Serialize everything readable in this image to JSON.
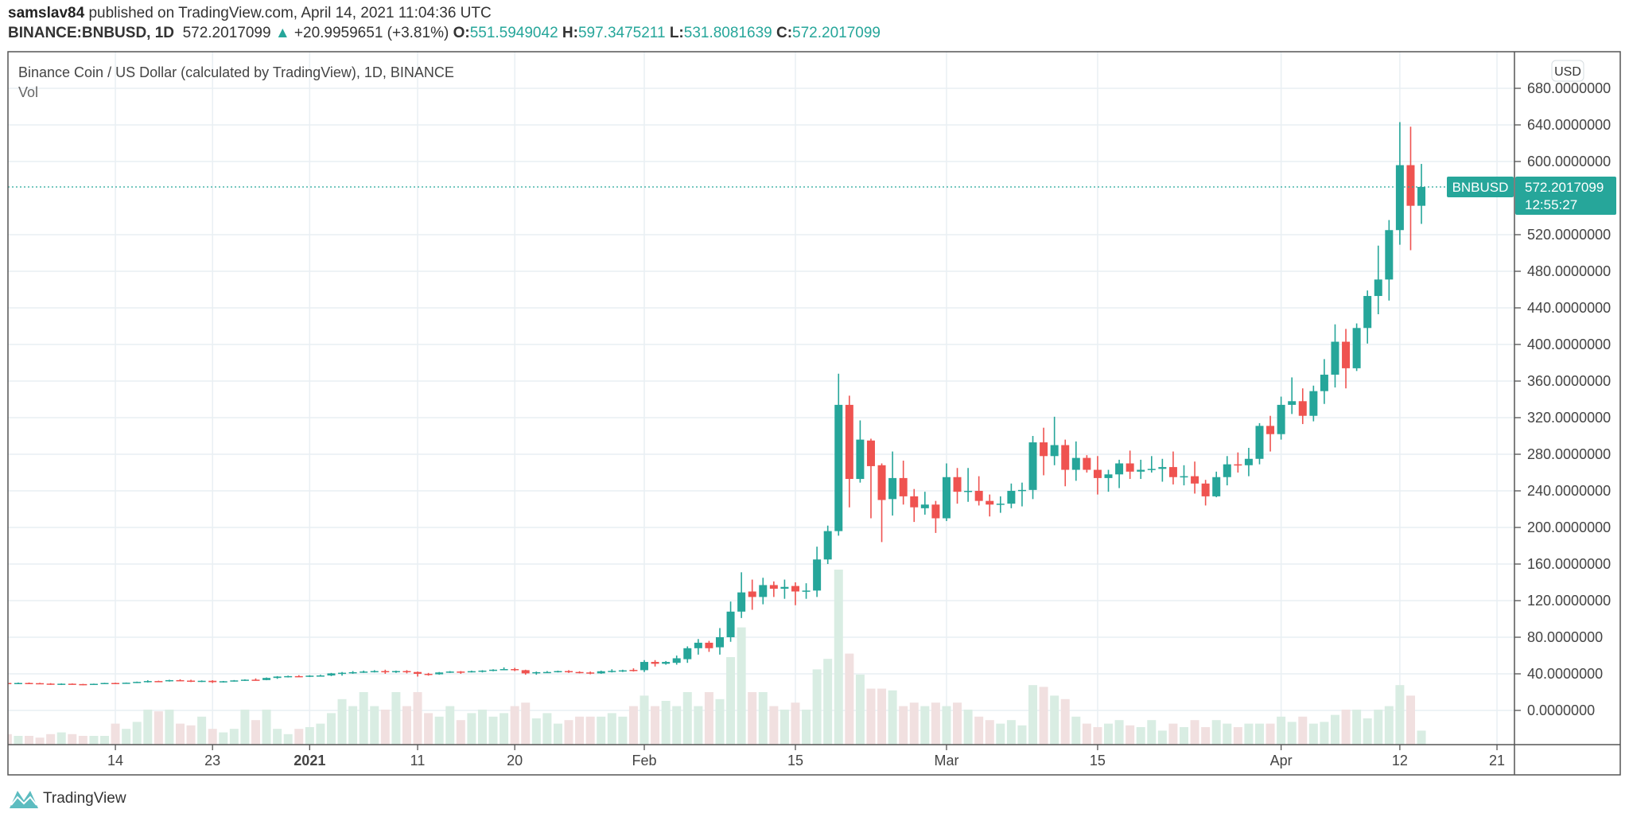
{
  "header": {
    "author": "samslav84",
    "published": "published on TradingView.com, April 14, 2021 11:04:36 UTC",
    "symbol": "BINANCE:BNBUSD, 1D",
    "last": "572.2017099",
    "change": "+20.9959651 (+3.81%)",
    "o_label": "O:",
    "o": "551.5949042",
    "h_label": "H:",
    "h": "597.3475211",
    "l_label": "L:",
    "l": "531.8081639",
    "c_label": "C:",
    "c": "572.2017099"
  },
  "legend": {
    "title": "Binance Coin / US Dollar (calculated by TradingView), 1D, BINANCE",
    "vol": "Vol"
  },
  "price_axis": {
    "currency": "USD",
    "symbol_tag": "BNBUSD",
    "last_price": "572.2017099",
    "countdown": "12:55:27"
  },
  "branding": {
    "logo_text": "TradingView"
  },
  "colors": {
    "up": "#26a69a",
    "down": "#ef5350",
    "vol_up": "#d9ede3",
    "vol_down": "#f1e0e0",
    "grid": "#e9eff3"
  },
  "chart_data": {
    "type": "candlestick",
    "ylim": [
      -60,
      700
    ],
    "grid": true,
    "y_ticks": [
      {
        "value": 680,
        "label": "680.0000000"
      },
      {
        "value": 640,
        "label": "640.0000000"
      },
      {
        "value": 600,
        "label": "600.0000000"
      },
      {
        "value": 520,
        "label": "520.0000000"
      },
      {
        "value": 480,
        "label": "480.0000000"
      },
      {
        "value": 440,
        "label": "440.0000000"
      },
      {
        "value": 400,
        "label": "400.0000000"
      },
      {
        "value": 360,
        "label": "360.0000000"
      },
      {
        "value": 320,
        "label": "320.0000000"
      },
      {
        "value": 280,
        "label": "280.0000000"
      },
      {
        "value": 240,
        "label": "240.0000000"
      },
      {
        "value": 200,
        "label": "200.0000000"
      },
      {
        "value": 160,
        "label": "160.0000000"
      },
      {
        "value": 120,
        "label": "120.0000000"
      },
      {
        "value": 80,
        "label": "80.0000000"
      },
      {
        "value": 40,
        "label": "40.0000000"
      },
      {
        "value": 0,
        "label": "0.0000000"
      }
    ],
    "x_ticks": [
      {
        "date": "2020-12-14",
        "label": "14"
      },
      {
        "date": "2020-12-23",
        "label": "23"
      },
      {
        "date": "2021-01-01",
        "label": "2021",
        "bold": true
      },
      {
        "date": "2021-01-11",
        "label": "11"
      },
      {
        "date": "2021-01-20",
        "label": "20"
      },
      {
        "date": "2021-02-01",
        "label": "Feb"
      },
      {
        "date": "2021-02-15",
        "label": "15"
      },
      {
        "date": "2021-03-01",
        "label": "Mar"
      },
      {
        "date": "2021-03-15",
        "label": "15"
      },
      {
        "date": "2021-04-01",
        "label": "Apr"
      },
      {
        "date": "2021-04-12",
        "label": "12"
      },
      {
        "date": "2021-04-21",
        "label": "21"
      }
    ],
    "last_price": 572.2017099,
    "columns": [
      "date",
      "open",
      "high",
      "low",
      "close",
      "volume_relative"
    ],
    "candles": [
      [
        "2020-12-04",
        30,
        31,
        28,
        29.5,
        6
      ],
      [
        "2020-12-05",
        29.5,
        30.5,
        29,
        30,
        5
      ],
      [
        "2020-12-06",
        30,
        30.5,
        29.5,
        29.8,
        5
      ],
      [
        "2020-12-07",
        29.8,
        30.2,
        29,
        29.3,
        4
      ],
      [
        "2020-12-08",
        29.3,
        29.8,
        28,
        28.5,
        6
      ],
      [
        "2020-12-09",
        28.5,
        29.5,
        27.8,
        29.2,
        7
      ],
      [
        "2020-12-10",
        29.2,
        29.5,
        28.5,
        28.8,
        6
      ],
      [
        "2020-12-11",
        28.8,
        29,
        27.5,
        28.2,
        5
      ],
      [
        "2020-12-12",
        28.2,
        29.3,
        28,
        29.1,
        5
      ],
      [
        "2020-12-13",
        29.1,
        30.2,
        28.9,
        30,
        5
      ],
      [
        "2020-12-14",
        30,
        30.3,
        29.3,
        29.8,
        12
      ],
      [
        "2020-12-15",
        29.8,
        30.5,
        29.4,
        30.3,
        9
      ],
      [
        "2020-12-16",
        30.3,
        31.5,
        29.9,
        31.2,
        13
      ],
      [
        "2020-12-17",
        31.2,
        33,
        30.5,
        32.1,
        20
      ],
      [
        "2020-12-18",
        32.1,
        32.5,
        31,
        31.8,
        19
      ],
      [
        "2020-12-19",
        31.8,
        33.5,
        31.5,
        33.1,
        20
      ],
      [
        "2020-12-20",
        33.1,
        34,
        32,
        32.6,
        12
      ],
      [
        "2020-12-21",
        32.6,
        33.5,
        31,
        31.6,
        11
      ],
      [
        "2020-12-22",
        31.6,
        32.8,
        31,
        32.4,
        16
      ],
      [
        "2020-12-23",
        32.4,
        33,
        30,
        30.9,
        9
      ],
      [
        "2020-12-24",
        30.9,
        32.2,
        30.5,
        31.9,
        7
      ],
      [
        "2020-12-25",
        31.9,
        33.2,
        31.5,
        32.8,
        9
      ],
      [
        "2020-12-26",
        32.8,
        34,
        32.3,
        33.6,
        20
      ],
      [
        "2020-12-27",
        33.6,
        35,
        32.5,
        33.2,
        14
      ],
      [
        "2020-12-28",
        33.2,
        36,
        33,
        35.5,
        20
      ],
      [
        "2020-12-29",
        35.5,
        37.5,
        34.5,
        37,
        9
      ],
      [
        "2020-12-30",
        37,
        38,
        36,
        37.5,
        6
      ],
      [
        "2020-12-31",
        37.5,
        38.5,
        36.5,
        37.4,
        9
      ],
      [
        "2021-01-01",
        37.4,
        38.5,
        36.5,
        38,
        10
      ],
      [
        "2021-01-02",
        38,
        39,
        37,
        38.2,
        12
      ],
      [
        "2021-01-03",
        38.2,
        41,
        37.5,
        40.5,
        18
      ],
      [
        "2021-01-04",
        40.5,
        42,
        38,
        41.2,
        26
      ],
      [
        "2021-01-05",
        41.2,
        43,
        40,
        41.8,
        22
      ],
      [
        "2021-01-06",
        41.8,
        43.5,
        41,
        42.5,
        30
      ],
      [
        "2021-01-07",
        42.5,
        44,
        41.5,
        43,
        22
      ],
      [
        "2021-01-08",
        43,
        44.5,
        40,
        41.8,
        20
      ],
      [
        "2021-01-09",
        41.8,
        43.5,
        41,
        43,
        30
      ],
      [
        "2021-01-10",
        43,
        44,
        40.5,
        42,
        22
      ],
      [
        "2021-01-11",
        42,
        42.5,
        37,
        40,
        30
      ],
      [
        "2021-01-12",
        40,
        41,
        38,
        39.5,
        18
      ],
      [
        "2021-01-13",
        39.5,
        42,
        39,
        41.5,
        16
      ],
      [
        "2021-01-14",
        41.5,
        43,
        41,
        42.5,
        22
      ],
      [
        "2021-01-15",
        42.5,
        43,
        40,
        41.8,
        14
      ],
      [
        "2021-01-16",
        41.8,
        43.5,
        41.5,
        42.9,
        18
      ],
      [
        "2021-01-17",
        42.9,
        44,
        41.5,
        43.5,
        20
      ],
      [
        "2021-01-18",
        43.5,
        45,
        42.8,
        44.5,
        16
      ],
      [
        "2021-01-19",
        44.5,
        47,
        44,
        45.2,
        18
      ],
      [
        "2021-01-20",
        45.2,
        46.5,
        43,
        44,
        22
      ],
      [
        "2021-01-21",
        44,
        44.5,
        39,
        40.5,
        24
      ],
      [
        "2021-01-22",
        40.5,
        42.5,
        39,
        41.8,
        15
      ],
      [
        "2021-01-23",
        41.8,
        43,
        41,
        42,
        18
      ],
      [
        "2021-01-24",
        42,
        43.5,
        41.5,
        43,
        12
      ],
      [
        "2021-01-25",
        43,
        44,
        41,
        42,
        14
      ],
      [
        "2021-01-26",
        42,
        42.8,
        40.5,
        41.5,
        16
      ],
      [
        "2021-01-27",
        41.5,
        42.5,
        39.5,
        40.5,
        16
      ],
      [
        "2021-01-28",
        40.5,
        43.5,
        40,
        42.8,
        16
      ],
      [
        "2021-01-29",
        42.8,
        45,
        41.5,
        43.2,
        18
      ],
      [
        "2021-01-30",
        43.2,
        44.5,
        42,
        43.8,
        16
      ],
      [
        "2021-01-31",
        44.3,
        46,
        42.5,
        43.9,
        22
      ],
      [
        "2021-02-01",
        44,
        55,
        42,
        53,
        28
      ],
      [
        "2021-02-02",
        53,
        55,
        48,
        51,
        22
      ],
      [
        "2021-02-03",
        51,
        54,
        50,
        53,
        25
      ],
      [
        "2021-02-04",
        52,
        60,
        50,
        57,
        22
      ],
      [
        "2021-02-05",
        56,
        70,
        52,
        68,
        30
      ],
      [
        "2021-02-06",
        68,
        78,
        61,
        74,
        22
      ],
      [
        "2021-02-07",
        74,
        76,
        64,
        68,
        30
      ],
      [
        "2021-02-08",
        69,
        90,
        61,
        80,
        26
      ],
      [
        "2021-02-09",
        80,
        119,
        75,
        108,
        50
      ],
      [
        "2021-02-10",
        108,
        151,
        101,
        129,
        67
      ],
      [
        "2021-02-11",
        130,
        143,
        110,
        124,
        30
      ],
      [
        "2021-02-12",
        124,
        145,
        116,
        137,
        30
      ],
      [
        "2021-02-13",
        137,
        141,
        124,
        133,
        22
      ],
      [
        "2021-02-14",
        133,
        143,
        122,
        135,
        20
      ],
      [
        "2021-02-15",
        136,
        140,
        115,
        130,
        24
      ],
      [
        "2021-02-16",
        130,
        139,
        122,
        131,
        20
      ],
      [
        "2021-02-17",
        131,
        179,
        124,
        165,
        43
      ],
      [
        "2021-02-18",
        165,
        202,
        160,
        196,
        49
      ],
      [
        "2021-02-19",
        196,
        368,
        191,
        334,
        100
      ],
      [
        "2021-02-20",
        334,
        344,
        222,
        253,
        52
      ],
      [
        "2021-02-21",
        253,
        317,
        249,
        296,
        40
      ],
      [
        "2021-02-22",
        295,
        297,
        210,
        267,
        32
      ],
      [
        "2021-02-23",
        268,
        270,
        184,
        230,
        32
      ],
      [
        "2021-02-24",
        231,
        283,
        213,
        254,
        31
      ],
      [
        "2021-02-25",
        254,
        273,
        225,
        234,
        22
      ],
      [
        "2021-02-26",
        234,
        242,
        206,
        222,
        24
      ],
      [
        "2021-02-27",
        221,
        239,
        214,
        225,
        22
      ],
      [
        "2021-02-28",
        225,
        229,
        194,
        210,
        24
      ],
      [
        "2021-03-01",
        210,
        270,
        207,
        255,
        22
      ],
      [
        "2021-03-02",
        255,
        265,
        226,
        239,
        24
      ],
      [
        "2021-03-03",
        239,
        265,
        228,
        240,
        20
      ],
      [
        "2021-03-04",
        240,
        256,
        224,
        229,
        16
      ],
      [
        "2021-03-05",
        229,
        236,
        212,
        225,
        14
      ],
      [
        "2021-03-06",
        225,
        234,
        216,
        226,
        12
      ],
      [
        "2021-03-07",
        226,
        248,
        221,
        240,
        14
      ],
      [
        "2021-03-08",
        240,
        249,
        223,
        241,
        11
      ],
      [
        "2021-03-09",
        241,
        300,
        231,
        293,
        34
      ],
      [
        "2021-03-10",
        293,
        309,
        257,
        278,
        33
      ],
      [
        "2021-03-11",
        278,
        321,
        268,
        290,
        28
      ],
      [
        "2021-03-12",
        290,
        296,
        245,
        263,
        26
      ],
      [
        "2021-03-13",
        263,
        294,
        251,
        276,
        16
      ],
      [
        "2021-03-14",
        276,
        279,
        260,
        263,
        12
      ],
      [
        "2021-03-15",
        263,
        278,
        236,
        254,
        10
      ],
      [
        "2021-03-16",
        254,
        263,
        239,
        258,
        12
      ],
      [
        "2021-03-17",
        258,
        274,
        243,
        270,
        14
      ],
      [
        "2021-03-18",
        270,
        284,
        253,
        261,
        11
      ],
      [
        "2021-03-19",
        261,
        274,
        253,
        263,
        10
      ],
      [
        "2021-03-20",
        263,
        278,
        260,
        264,
        14
      ],
      [
        "2021-03-21",
        264,
        275,
        250,
        266,
        8
      ],
      [
        "2021-03-22",
        266,
        283,
        247,
        255,
        12
      ],
      [
        "2021-03-23",
        255,
        268,
        246,
        256,
        10
      ],
      [
        "2021-03-24",
        256,
        272,
        237,
        248,
        14
      ],
      [
        "2021-03-25",
        248,
        252,
        224,
        234,
        10
      ],
      [
        "2021-03-26",
        234,
        261,
        233,
        255,
        14
      ],
      [
        "2021-03-27",
        255,
        278,
        246,
        269,
        12
      ],
      [
        "2021-03-28",
        269,
        282,
        260,
        268,
        10
      ],
      [
        "2021-03-29",
        268,
        287,
        256,
        275,
        12
      ],
      [
        "2021-03-30",
        275,
        314,
        269,
        311,
        12
      ],
      [
        "2021-03-31",
        311,
        322,
        283,
        302,
        12
      ],
      [
        "2021-04-01",
        302,
        343,
        296,
        334,
        16
      ],
      [
        "2021-04-02",
        334,
        364,
        324,
        338,
        13
      ],
      [
        "2021-04-03",
        338,
        352,
        313,
        322,
        16
      ],
      [
        "2021-04-04",
        322,
        355,
        316,
        349,
        12
      ],
      [
        "2021-04-05",
        349,
        384,
        335,
        367,
        13
      ],
      [
        "2021-04-06",
        367,
        422,
        353,
        403,
        17
      ],
      [
        "2021-04-07",
        403,
        417,
        352,
        374,
        20
      ],
      [
        "2021-04-08",
        374,
        423,
        371,
        418,
        20
      ],
      [
        "2021-04-09",
        418,
        459,
        401,
        453,
        15
      ],
      [
        "2021-04-10",
        453,
        508,
        433,
        471,
        20
      ],
      [
        "2021-04-11",
        471,
        536,
        448,
        525,
        22
      ],
      [
        "2021-04-12",
        525,
        643,
        509,
        596,
        34
      ],
      [
        "2021-04-13",
        596,
        638,
        503,
        551.5949042,
        28
      ],
      [
        "2021-04-14",
        551.5949042,
        597.3475211,
        531.8081639,
        572.2017099,
        8
      ]
    ]
  }
}
